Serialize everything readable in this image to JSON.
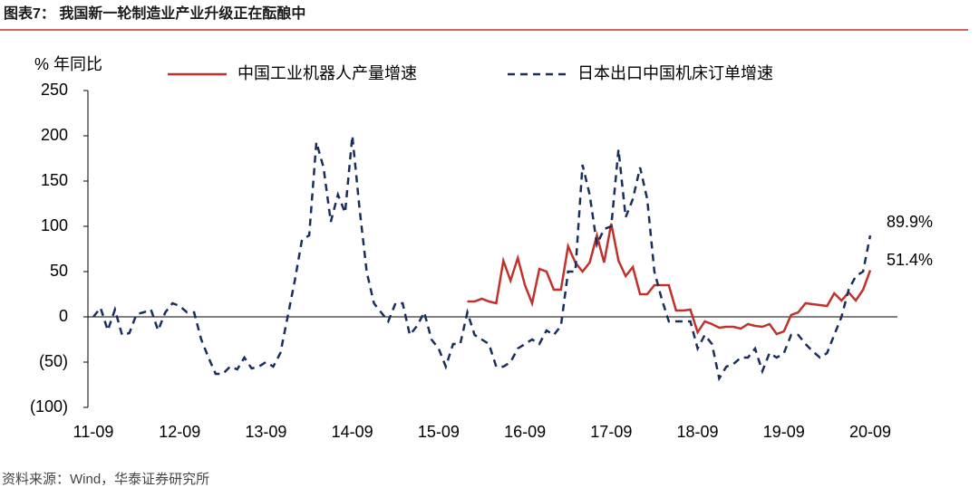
{
  "chart_data": {
    "type": "line",
    "title": "图表7：  我国新一轮制造业产业升级正在酝酿中",
    "ylabel": "% 年同比",
    "source": "资料来源：Wind，华泰证券研究所",
    "categories": [
      "11-09",
      null,
      null,
      null,
      null,
      null,
      null,
      null,
      null,
      null,
      null,
      null,
      "12-09",
      null,
      null,
      null,
      null,
      null,
      null,
      null,
      null,
      null,
      null,
      null,
      "13-09",
      null,
      null,
      null,
      null,
      null,
      null,
      null,
      null,
      null,
      null,
      null,
      "14-09",
      null,
      null,
      null,
      null,
      null,
      null,
      null,
      null,
      null,
      null,
      null,
      "15-09",
      null,
      null,
      null,
      null,
      null,
      null,
      null,
      null,
      null,
      null,
      null,
      "16-09",
      null,
      null,
      null,
      null,
      null,
      null,
      null,
      null,
      null,
      null,
      null,
      "17-09",
      null,
      null,
      null,
      null,
      null,
      null,
      null,
      null,
      null,
      null,
      null,
      "18-09",
      null,
      null,
      null,
      null,
      null,
      null,
      null,
      null,
      null,
      null,
      null,
      "19-09",
      null,
      null,
      null,
      null,
      null,
      null,
      null,
      null,
      null,
      null,
      null,
      "20-09"
    ],
    "series": [
      {
        "name": "中国工业机器人产量增速",
        "color": "#c0312b",
        "dash": false,
        "values": [
          null,
          null,
          null,
          null,
          null,
          null,
          null,
          null,
          null,
          null,
          null,
          null,
          null,
          null,
          null,
          null,
          null,
          null,
          null,
          null,
          null,
          null,
          null,
          null,
          null,
          null,
          null,
          null,
          null,
          null,
          null,
          null,
          null,
          null,
          null,
          null,
          null,
          null,
          null,
          null,
          null,
          null,
          null,
          null,
          null,
          null,
          null,
          null,
          null,
          null,
          null,
          null,
          17,
          17,
          20,
          17,
          15,
          62,
          40,
          65,
          35,
          15,
          53,
          50,
          30,
          30,
          78,
          60,
          50,
          60,
          90,
          60,
          103,
          62,
          45,
          55,
          25,
          25,
          35,
          35,
          35,
          7,
          7,
          8,
          -17,
          -5,
          -8,
          -12,
          -11,
          -11,
          -13,
          -8,
          -10,
          -11,
          -8,
          -19,
          -16,
          2,
          5,
          15,
          14,
          13,
          12,
          26,
          18,
          27,
          18,
          30,
          51.4
        ]
      },
      {
        "name": "日本出口中国机床订单增速",
        "color": "#1a2e5c",
        "dash": true,
        "values": [
          0,
          10,
          -15,
          8,
          -20,
          -18,
          3,
          5,
          8,
          -15,
          5,
          15,
          12,
          5,
          5,
          -25,
          -45,
          -63,
          -63,
          -55,
          -58,
          -45,
          -57,
          -55,
          -50,
          -55,
          -40,
          0,
          40,
          85,
          90,
          193,
          165,
          105,
          135,
          115,
          200,
          120,
          50,
          15,
          5,
          -5,
          15,
          15,
          -20,
          -10,
          5,
          -25,
          -35,
          -55,
          -30,
          -30,
          5,
          -20,
          -25,
          -30,
          -55,
          -55,
          -50,
          -35,
          -30,
          -25,
          -30,
          -15,
          -20,
          -10,
          50,
          50,
          168,
          135,
          80,
          97,
          100,
          185,
          110,
          130,
          165,
          130,
          50,
          20,
          -5,
          -5,
          -5,
          -5,
          -35,
          -20,
          -30,
          -68,
          -55,
          -52,
          -45,
          -45,
          -35,
          -60,
          -40,
          -45,
          -40,
          -20,
          -20,
          -30,
          -38,
          -45,
          -40,
          -20,
          0,
          30,
          45,
          50,
          89.9
        ]
      }
    ],
    "annotations": [
      "89.9%",
      "51.4%"
    ],
    "ylim": [
      -100,
      250
    ],
    "yticks": [
      {
        "value": -100,
        "label": "(100)"
      },
      {
        "value": -50,
        "label": "(50)"
      },
      0,
      50,
      100,
      150,
      200,
      250
    ]
  }
}
